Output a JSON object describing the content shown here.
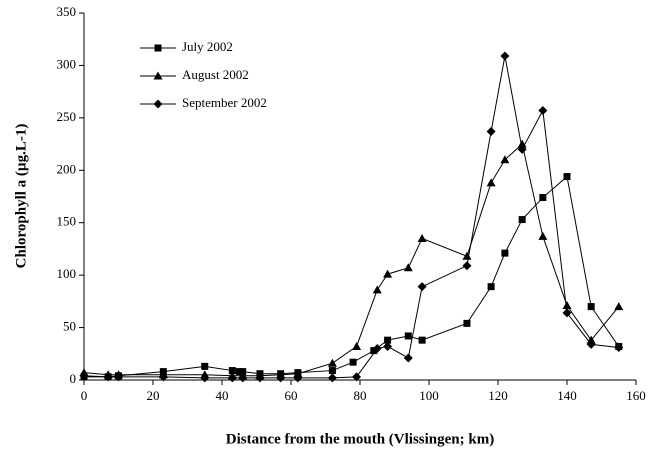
{
  "chart_data": {
    "type": "line",
    "xlabel": "Distance from the mouth (Vlissingen; km)",
    "ylabel": "Chlorophyll a  (µg.L-1)",
    "xlim": [
      0,
      160
    ],
    "xticks": [
      0,
      20,
      40,
      60,
      80,
      100,
      120,
      140,
      160
    ],
    "ylim": [
      0,
      350
    ],
    "yticks": [
      0,
      50,
      100,
      150,
      200,
      250,
      300,
      350
    ],
    "legend": "upper-left",
    "series": [
      {
        "name": "July 2002",
        "color": "#000000",
        "marker": "square",
        "x": [
          0,
          7,
          10,
          23,
          35,
          43,
          45,
          46,
          51,
          57,
          62,
          72,
          78,
          84,
          88,
          94,
          98,
          111,
          118,
          122,
          127,
          133,
          140,
          147,
          155
        ],
        "values": [
          3,
          3,
          4,
          8,
          13,
          9,
          8,
          8,
          6,
          6,
          7,
          9,
          17,
          28,
          38,
          42,
          38,
          54,
          89,
          121,
          153,
          174,
          194,
          70,
          32
        ]
      },
      {
        "name": "August 2002",
        "color": "#000000",
        "marker": "triangle",
        "x": [
          0,
          7,
          10,
          23,
          35,
          43,
          46,
          51,
          57,
          62,
          72,
          79,
          85,
          88,
          94,
          98,
          111,
          118,
          122,
          127,
          133,
          140,
          147,
          155
        ],
        "values": [
          7,
          5,
          5,
          5,
          5,
          4,
          4,
          4,
          5,
          6,
          16,
          32,
          86,
          101,
          107,
          135,
          118,
          188,
          210,
          225,
          137,
          71,
          38,
          70
        ]
      },
      {
        "name": "September 2002",
        "color": "#000000",
        "marker": "diamond",
        "x": [
          0,
          7,
          10,
          23,
          35,
          43,
          46,
          51,
          57,
          62,
          72,
          79,
          85,
          88,
          94,
          98,
          111,
          118,
          122,
          127,
          133,
          140,
          147,
          155
        ],
        "values": [
          4,
          3,
          3,
          3,
          2,
          2,
          2,
          2,
          2,
          2,
          2,
          3,
          30,
          32,
          21,
          89,
          109,
          237,
          309,
          220,
          257,
          64,
          34,
          31
        ]
      }
    ]
  }
}
